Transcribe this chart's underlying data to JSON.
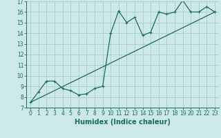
{
  "title": "",
  "xlabel": "Humidex (Indice chaleur)",
  "background_color": "#cce8e8",
  "grid_color": "#aacccc",
  "line_color": "#1a6b5a",
  "curve_x": [
    0,
    1,
    2,
    3,
    4,
    5,
    6,
    7,
    8,
    9,
    10,
    11,
    12,
    13,
    14,
    15,
    16,
    17,
    18,
    19,
    20,
    21,
    22,
    23
  ],
  "curve_y": [
    7.5,
    8.5,
    9.5,
    9.5,
    8.8,
    8.6,
    8.2,
    8.3,
    8.8,
    9.0,
    14.0,
    16.1,
    15.0,
    15.5,
    13.8,
    14.1,
    16.0,
    15.8,
    16.0,
    17.1,
    16.0,
    16.0,
    16.5,
    16.0
  ],
  "line_x": [
    0,
    23
  ],
  "line_y": [
    7.5,
    16.0
  ],
  "xlim": [
    -0.5,
    23.5
  ],
  "ylim": [
    7,
    17
  ],
  "xticks": [
    0,
    1,
    2,
    3,
    4,
    5,
    6,
    7,
    8,
    9,
    10,
    11,
    12,
    13,
    14,
    15,
    16,
    17,
    18,
    19,
    20,
    21,
    22,
    23
  ],
  "yticks": [
    7,
    8,
    9,
    10,
    11,
    12,
    13,
    14,
    15,
    16,
    17
  ],
  "tick_fontsize": 5.5,
  "xlabel_fontsize": 7.0
}
